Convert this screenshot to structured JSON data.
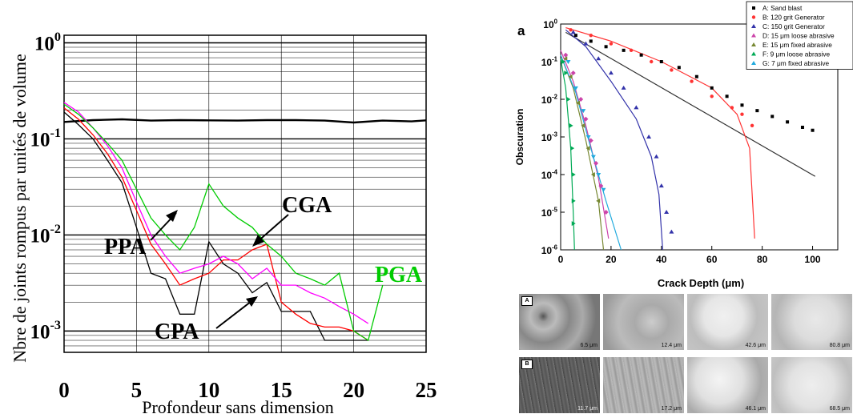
{
  "left_axis_label_y": "Nbre de joints rompus par unités de volume",
  "left_axis_label_x": "Profondeur sans dimension",
  "right_panel_letter": "a",
  "right_axis_label_y": "Obscuration",
  "right_axis_label_x": "Crack Depth (μm)",
  "annotations": {
    "ppa": "PPA",
    "cga": "CGA",
    "cpa": "CPA",
    "pga": "PGA"
  },
  "micrographs": {
    "rows": [
      {
        "tag": "A",
        "captions": [
          "6.5 μm",
          "12.4 μm",
          "42.6 μm",
          "80.8 μm"
        ]
      },
      {
        "tag": "B",
        "captions": [
          "11.7 μm",
          "17.2 μm",
          "46.1 μm",
          "68.5 μm"
        ]
      }
    ]
  },
  "chart_data": [
    {
      "type": "line",
      "y_scale": "log",
      "xlabel": "Profondeur sans dimension",
      "ylabel": "Nbre de joints rompus par unités de volume",
      "xlim": [
        0,
        25
      ],
      "ylim": [
        0.0006,
        1.2
      ],
      "x_ticks": [
        0,
        5,
        10,
        15,
        20,
        25
      ],
      "y_tick_labels": [
        "10^0",
        "10^-1",
        "10^-2",
        "10^-3"
      ],
      "grid": true,
      "series": [
        {
          "name": "PGA",
          "color": "#000000",
          "x": [
            0,
            2,
            4,
            6,
            8,
            10,
            12,
            14,
            16,
            18,
            20,
            22,
            24,
            25
          ],
          "y": [
            0.15,
            0.157,
            0.16,
            0.155,
            0.157,
            0.156,
            0.155,
            0.157,
            0.157,
            0.155,
            0.148,
            0.155,
            0.152,
            0.156
          ]
        },
        {
          "name": "PPA",
          "color": "#000000",
          "x": [
            0,
            1,
            2,
            3,
            4,
            5,
            6,
            7,
            8,
            9,
            10,
            11,
            12,
            13,
            14,
            15,
            16,
            17,
            18,
            19,
            20,
            21
          ],
          "y": [
            0.19,
            0.14,
            0.1,
            0.06,
            0.035,
            0.012,
            0.004,
            0.0035,
            0.0015,
            0.0015,
            0.0085,
            0.005,
            0.004,
            0.0025,
            0.0032,
            0.0016,
            0.0016,
            0.0016,
            0.0008,
            0.0008,
            0.0008,
            0.0008
          ]
        },
        {
          "name": "CPA",
          "color": "#ff0000",
          "x": [
            0,
            1,
            2,
            3,
            4,
            5,
            6,
            7,
            8,
            9,
            10,
            11,
            12,
            13,
            14,
            15,
            16,
            17,
            18,
            19,
            20,
            21
          ],
          "y": [
            0.21,
            0.16,
            0.11,
            0.07,
            0.04,
            0.018,
            0.008,
            0.005,
            0.003,
            0.0035,
            0.004,
            0.0055,
            0.0055,
            0.007,
            0.008,
            0.002,
            0.0015,
            0.0012,
            0.0011,
            0.0011,
            0.001,
            0.0008
          ]
        },
        {
          "name": "CGA",
          "color": "#ff00ff",
          "x": [
            0,
            1,
            2,
            3,
            4,
            5,
            6,
            7,
            8,
            9,
            10,
            11,
            12,
            13,
            14,
            15,
            16,
            17,
            18,
            19,
            20,
            21
          ],
          "y": [
            0.24,
            0.19,
            0.13,
            0.085,
            0.05,
            0.022,
            0.01,
            0.006,
            0.004,
            0.0045,
            0.005,
            0.006,
            0.005,
            0.0035,
            0.0045,
            0.003,
            0.003,
            0.0025,
            0.0022,
            0.0018,
            0.0015,
            0.0012
          ]
        },
        {
          "name": "green",
          "color": "#00cc00",
          "x": [
            0,
            1,
            2,
            3,
            4,
            5,
            6,
            7,
            8,
            9,
            10,
            11,
            12,
            13,
            14,
            15,
            16,
            17,
            18,
            19,
            20,
            21,
            22
          ],
          "y": [
            0.23,
            0.18,
            0.13,
            0.09,
            0.06,
            0.03,
            0.015,
            0.01,
            0.007,
            0.012,
            0.034,
            0.02,
            0.015,
            0.012,
            0.008,
            0.006,
            0.004,
            0.0035,
            0.003,
            0.004,
            0.001,
            0.0008,
            0.003
          ]
        }
      ]
    },
    {
      "type": "scatter",
      "y_scale": "log",
      "xlabel": "Crack Depth (μm)",
      "ylabel": "Obscuration",
      "xlim": [
        0,
        110
      ],
      "ylim": [
        1e-06,
        1
      ],
      "x_ticks": [
        0,
        20,
        40,
        60,
        80,
        100
      ],
      "y_tick_labels": [
        "10^0",
        "10^-1",
        "10^-2",
        "10^-3",
        "10^-4",
        "10^-5",
        "10^-6"
      ],
      "legend_position": "top-right",
      "series": [
        {
          "name": "A: Sand blast",
          "color": "#000000",
          "marker": "square",
          "points": [
            [
              6,
              0.5
            ],
            [
              12,
              0.35
            ],
            [
              18,
              0.25
            ],
            [
              25,
              0.2
            ],
            [
              32,
              0.15
            ],
            [
              40,
              0.1
            ],
            [
              47,
              0.07
            ],
            [
              54,
              0.04
            ],
            [
              60,
              0.02
            ],
            [
              66,
              0.012
            ],
            [
              72,
              0.007
            ],
            [
              78,
              0.005
            ],
            [
              84,
              0.0035
            ],
            [
              90,
              0.0025
            ],
            [
              96,
              0.0018
            ],
            [
              100,
              0.0015
            ]
          ],
          "fit": [
            [
              2,
              0.6
            ],
            [
              101,
              9e-05
            ]
          ]
        },
        {
          "name": "B: 120 grit Generator",
          "color": "#ff3333",
          "marker": "circle",
          "points": [
            [
              4,
              0.7
            ],
            [
              12,
              0.5
            ],
            [
              20,
              0.3
            ],
            [
              28,
              0.2
            ],
            [
              36,
              0.1
            ],
            [
              44,
              0.06
            ],
            [
              52,
              0.03
            ],
            [
              60,
              0.012
            ],
            [
              68,
              0.006
            ],
            [
              72,
              0.004
            ],
            [
              76,
              0.002
            ]
          ],
          "fit": [
            [
              2,
              0.8
            ],
            [
              20,
              0.35
            ],
            [
              40,
              0.1
            ],
            [
              60,
              0.02
            ],
            [
              70,
              0.004
            ],
            [
              75,
              0.0005
            ],
            [
              77,
              2e-06
            ]
          ]
        },
        {
          "name": "C: 150 grit Generator",
          "color": "#3333aa",
          "marker": "triangle",
          "points": [
            [
              5,
              0.6
            ],
            [
              10,
              0.3
            ],
            [
              15,
              0.12
            ],
            [
              20,
              0.05
            ],
            [
              25,
              0.02
            ],
            [
              30,
              0.006
            ],
            [
              35,
              0.001
            ],
            [
              38,
              0.0003
            ],
            [
              40,
              5e-05
            ],
            [
              42,
              1e-05
            ],
            [
              44,
              3e-06
            ]
          ],
          "fit": [
            [
              2,
              0.7
            ],
            [
              10,
              0.25
            ],
            [
              20,
              0.03
            ],
            [
              30,
              0.003
            ],
            [
              36,
              0.0003
            ],
            [
              39,
              3e-05
            ],
            [
              40.5,
              1e-06
            ]
          ]
        },
        {
          "name": "D: 15 μm loose abrasive",
          "color": "#cc44aa",
          "marker": "diamond",
          "points": [
            [
              2,
              0.15
            ],
            [
              5,
              0.05
            ],
            [
              8,
              0.01
            ],
            [
              10,
              0.003
            ],
            [
              12,
              0.0008
            ],
            [
              14,
              0.0002
            ],
            [
              16,
              5e-05
            ],
            [
              18,
              1e-05
            ]
          ],
          "fit": [
            [
              0,
              0.2
            ],
            [
              5,
              0.03
            ],
            [
              10,
              0.002
            ],
            [
              15,
              8e-05
            ],
            [
              19,
              2e-06
            ]
          ]
        },
        {
          "name": "E: 15 μm fixed abrasive",
          "color": "#778833",
          "marker": "tri-left",
          "points": [
            [
              2,
              0.12
            ],
            [
              4,
              0.04
            ],
            [
              7,
              0.008
            ],
            [
              9,
              0.002
            ],
            [
              11,
              0.0005
            ],
            [
              13,
              0.0001
            ],
            [
              15,
              2e-05
            ]
          ],
          "fit": [
            [
              0,
              0.15
            ],
            [
              5,
              0.02
            ],
            [
              10,
              0.0008
            ],
            [
              15,
              2e-05
            ],
            [
              17,
              1e-06
            ]
          ]
        },
        {
          "name": "F: 9 μm loose abrasive",
          "color": "#00aa55",
          "marker": "tri-right",
          "points": [
            [
              1,
              0.1
            ],
            [
              2,
              0.05
            ],
            [
              3,
              0.01
            ],
            [
              4,
              0.002
            ],
            [
              4.5,
              0.0005
            ],
            [
              5,
              0.0001
            ],
            [
              5,
              2e-05
            ],
            [
              5,
              5e-06
            ]
          ],
          "fit": [
            [
              0,
              0.12
            ],
            [
              2,
              0.02
            ],
            [
              4,
              0.0005
            ],
            [
              5,
              1e-05
            ],
            [
              5.5,
              1e-06
            ]
          ]
        },
        {
          "name": "G: 7 μm fixed abrasive",
          "color": "#22aadd",
          "marker": "tri-down",
          "points": [
            [
              3,
              0.1
            ],
            [
              6,
              0.02
            ],
            [
              9,
              0.005
            ],
            [
              11,
              0.001
            ],
            [
              13,
              0.0003
            ],
            [
              15,
              0.0001
            ],
            [
              17,
              4e-05
            ]
          ],
          "fit": [
            [
              0,
              0.15
            ],
            [
              6,
              0.015
            ],
            [
              12,
              0.0005
            ],
            [
              18,
              2e-05
            ],
            [
              24,
              1e-06
            ]
          ]
        }
      ]
    }
  ]
}
